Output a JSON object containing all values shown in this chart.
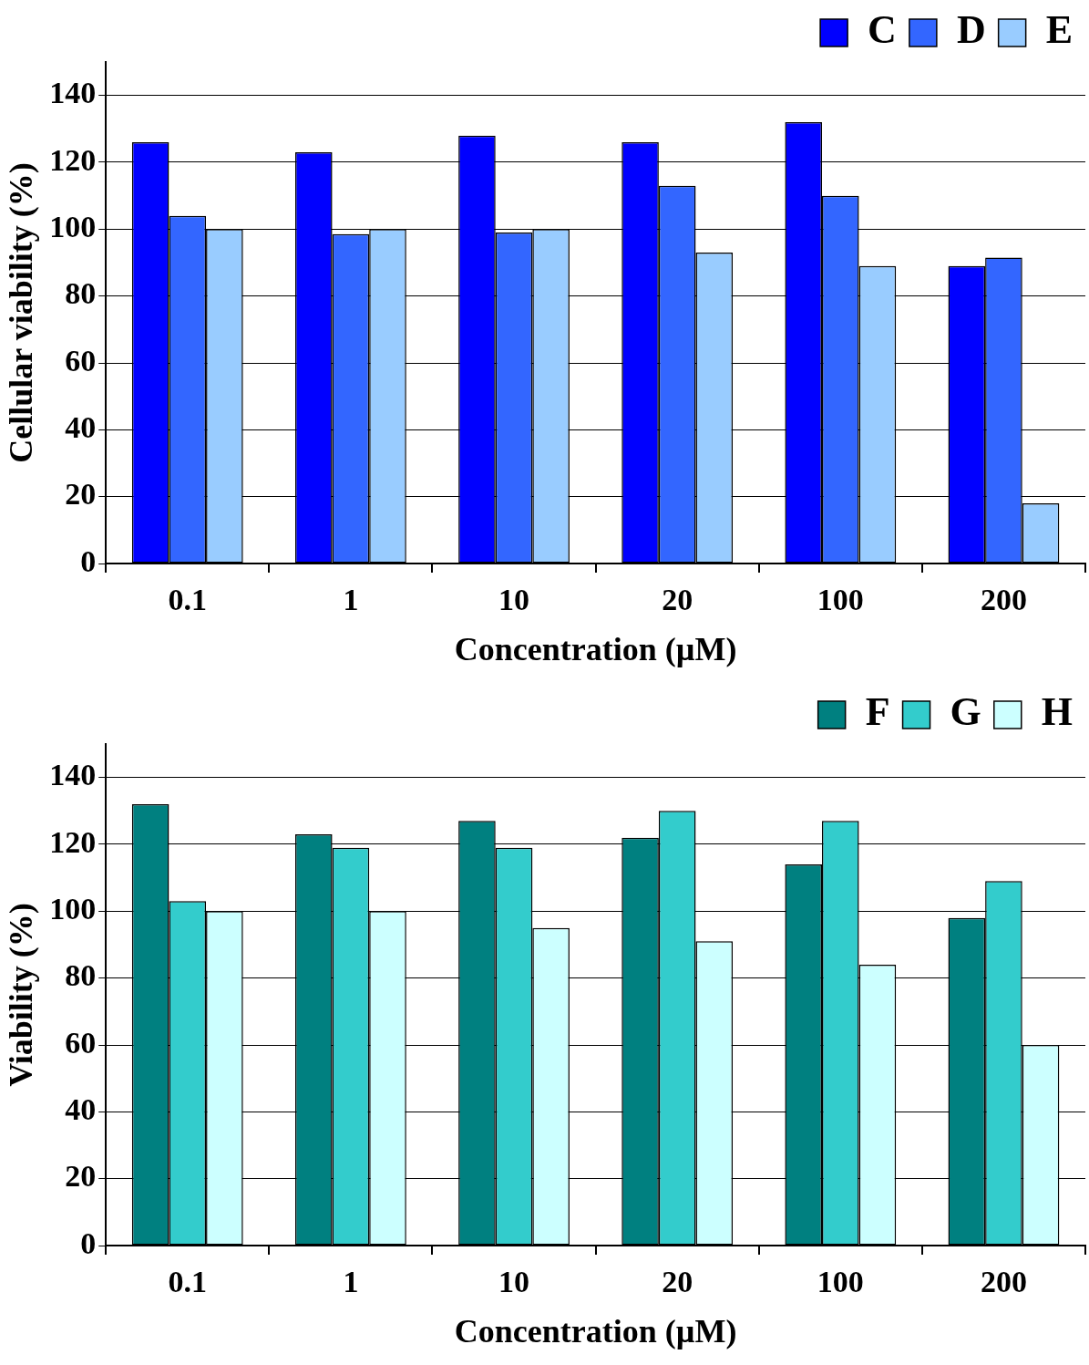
{
  "chart_data": [
    {
      "type": "bar",
      "xlabel": "Concentration (µM)",
      "ylabel": "Cellular viability (%)",
      "categories": [
        "0.1",
        "1",
        "10",
        "20",
        "100",
        "200"
      ],
      "series": [
        {
          "name": "C",
          "color": "#0000ff",
          "values": [
            126,
            123,
            128,
            126,
            132,
            89
          ]
        },
        {
          "name": "D",
          "color": "#3366ff",
          "values": [
            104,
            98.5,
            99,
            113,
            110,
            91.5
          ]
        },
        {
          "name": "E",
          "color": "#99ccff",
          "values": [
            100,
            100,
            100,
            93,
            89,
            18
          ]
        }
      ],
      "ylim": [
        0,
        150
      ],
      "yticks": [
        0,
        20,
        40,
        60,
        80,
        100,
        120,
        140
      ],
      "grid": "y",
      "legend": "top right"
    },
    {
      "type": "bar",
      "xlabel": "Concentration (µM)",
      "ylabel": "Viability (%)",
      "categories": [
        "0.1",
        "1",
        "10",
        "20",
        "100",
        "200"
      ],
      "series": [
        {
          "name": "F",
          "color": "#008080",
          "values": [
            132,
            123,
            127,
            122,
            114,
            98
          ]
        },
        {
          "name": "G",
          "color": "#33cccc",
          "values": [
            103,
            119,
            119,
            130,
            127,
            109
          ]
        },
        {
          "name": "H",
          "color": "#ccffff",
          "values": [
            100,
            100,
            95,
            91,
            84,
            60
          ]
        }
      ],
      "ylim": [
        0,
        150
      ],
      "yticks": [
        0,
        20,
        40,
        60,
        80,
        100,
        120,
        140
      ],
      "grid": "y",
      "legend": "top right"
    }
  ]
}
